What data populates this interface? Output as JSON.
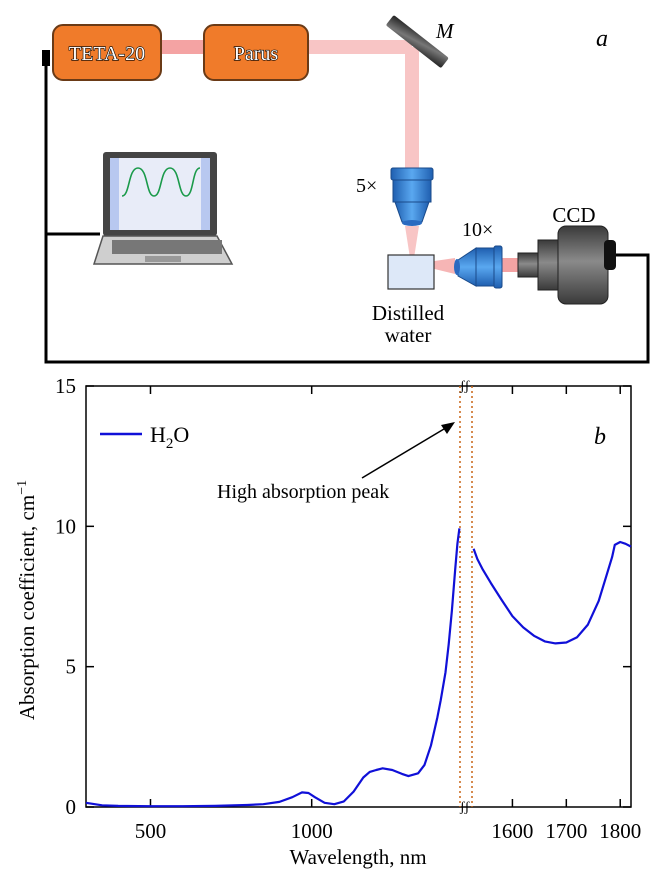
{
  "panel_a": {
    "label": "a",
    "laser_box": "TETA-20",
    "amplifier_box": "Parus",
    "mirror_label": "M",
    "obj1_label": "5×",
    "obj2_label": "10×",
    "camera_label": "CCD",
    "sample_label_line1": "Distilled",
    "sample_label_line2": "water",
    "colors": {
      "box_fill": "#f07b2a",
      "box_stroke": "#6a3a16",
      "beam": "#f4a3a3",
      "lens": "#3f8fe0",
      "camera": "#5a5a5a",
      "wire": "#000000"
    },
    "icons": [
      "laptop-icon",
      "mirror-icon",
      "objective-lens-icon",
      "ccd-camera-icon",
      "cuvette-icon"
    ]
  },
  "chart_data": {
    "type": "line",
    "panel_label": "b",
    "xlabel": "Wavelength, nm",
    "ylabel": "Absorption coefficient, cm",
    "ylabel_superscript": "−1",
    "ylim": [
      0,
      15
    ],
    "yticks": [
      0,
      5,
      10,
      15
    ],
    "xticks_left": [
      500,
      1000
    ],
    "xticks_right": [
      1600,
      1700,
      1800
    ],
    "x_break": true,
    "legend": {
      "name_main": "H",
      "name_sub": "2",
      "name_end": "O",
      "position": "top-left",
      "color": "#1010d8"
    },
    "annotation": "High absorption peak",
    "series": [
      {
        "name": "H2O",
        "color": "#1010d8",
        "segment_left": [
          [
            300,
            0.15
          ],
          [
            350,
            0.06
          ],
          [
            400,
            0.04
          ],
          [
            500,
            0.03
          ],
          [
            600,
            0.03
          ],
          [
            700,
            0.04
          ],
          [
            800,
            0.07
          ],
          [
            850,
            0.1
          ],
          [
            900,
            0.18
          ],
          [
            940,
            0.35
          ],
          [
            970,
            0.52
          ],
          [
            990,
            0.5
          ],
          [
            1010,
            0.35
          ],
          [
            1040,
            0.15
          ],
          [
            1070,
            0.1
          ],
          [
            1100,
            0.2
          ],
          [
            1130,
            0.55
          ],
          [
            1160,
            1.05
          ],
          [
            1180,
            1.25
          ],
          [
            1200,
            1.32
          ],
          [
            1220,
            1.38
          ],
          [
            1250,
            1.32
          ],
          [
            1280,
            1.18
          ],
          [
            1300,
            1.1
          ],
          [
            1330,
            1.2
          ],
          [
            1350,
            1.5
          ],
          [
            1370,
            2.2
          ],
          [
            1390,
            3.2
          ],
          [
            1400,
            3.8
          ],
          [
            1415,
            4.8
          ],
          [
            1425,
            5.8
          ],
          [
            1435,
            7.0
          ],
          [
            1445,
            8.4
          ],
          [
            1452,
            9.3
          ],
          [
            1458,
            9.85
          ]
        ],
        "segment_right": [
          [
            1528,
            9.2
          ],
          [
            1535,
            8.8
          ],
          [
            1545,
            8.4
          ],
          [
            1560,
            7.9
          ],
          [
            1580,
            7.3
          ],
          [
            1600,
            6.8
          ],
          [
            1620,
            6.4
          ],
          [
            1640,
            6.1
          ],
          [
            1660,
            5.9
          ],
          [
            1680,
            5.83
          ],
          [
            1700,
            5.86
          ],
          [
            1720,
            6.05
          ],
          [
            1740,
            6.5
          ],
          [
            1760,
            7.4
          ],
          [
            1775,
            8.3
          ],
          [
            1785,
            8.9
          ],
          [
            1790,
            9.3
          ],
          [
            1800,
            9.38
          ],
          [
            1810,
            9.3
          ],
          [
            1820,
            9.2
          ]
        ]
      }
    ]
  }
}
